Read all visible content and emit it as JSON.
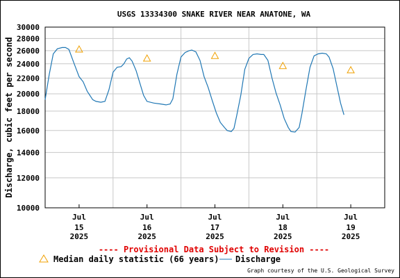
{
  "chart_data": {
    "type": "line",
    "title": "USGS 13334300 SNAKE RIVER NEAR ANATONE, WA",
    "ylabel": "Discharge, cubic feet per second",
    "xlabel": "",
    "y_scale": "log",
    "ylim": [
      10000,
      30000
    ],
    "y_ticks": [
      10000,
      12000,
      14000,
      16000,
      18000,
      20000,
      22000,
      24000,
      26000,
      28000,
      30000
    ],
    "y_tick_labels": [
      "10000",
      "12000",
      "14000",
      "16000",
      "18000",
      "20000",
      "22000",
      "24000",
      "26000",
      "28000",
      "30000"
    ],
    "x_unit": "day of July 2025",
    "xlim": [
      14.5,
      19.5
    ],
    "x_ticks": [
      {
        "x": 15,
        "label_month": "Jul",
        "label_day": "15",
        "label_year": "2025"
      },
      {
        "x": 16,
        "label_month": "Jul",
        "label_day": "16",
        "label_year": "2025"
      },
      {
        "x": 17,
        "label_month": "Jul",
        "label_day": "17",
        "label_year": "2025"
      },
      {
        "x": 18,
        "label_month": "Jul",
        "label_day": "18",
        "label_year": "2025"
      },
      {
        "x": 19,
        "label_month": "Jul",
        "label_day": "19",
        "label_year": "2025"
      }
    ],
    "grid": true,
    "series": [
      {
        "name": "Discharge",
        "color": "#1f77b4",
        "points": [
          [
            14.5,
            19300
          ],
          [
            14.56,
            22500
          ],
          [
            14.62,
            25500
          ],
          [
            14.68,
            26300
          ],
          [
            14.75,
            26500
          ],
          [
            14.8,
            26500
          ],
          [
            14.85,
            26200
          ],
          [
            14.92,
            24200
          ],
          [
            15.0,
            22200
          ],
          [
            15.06,
            21500
          ],
          [
            15.12,
            20300
          ],
          [
            15.2,
            19300
          ],
          [
            15.25,
            19100
          ],
          [
            15.32,
            19000
          ],
          [
            15.38,
            19100
          ],
          [
            15.44,
            20500
          ],
          [
            15.5,
            22800
          ],
          [
            15.56,
            23500
          ],
          [
            15.62,
            23600
          ],
          [
            15.66,
            24000
          ],
          [
            15.7,
            24700
          ],
          [
            15.74,
            24900
          ],
          [
            15.78,
            24400
          ],
          [
            15.84,
            23000
          ],
          [
            15.9,
            21200
          ],
          [
            15.95,
            19800
          ],
          [
            16.0,
            19100
          ],
          [
            16.1,
            18900
          ],
          [
            16.2,
            18800
          ],
          [
            16.28,
            18700
          ],
          [
            16.34,
            18800
          ],
          [
            16.38,
            19400
          ],
          [
            16.44,
            22500
          ],
          [
            16.5,
            25000
          ],
          [
            16.56,
            25700
          ],
          [
            16.62,
            26000
          ],
          [
            16.66,
            26100
          ],
          [
            16.72,
            25800
          ],
          [
            16.78,
            24500
          ],
          [
            16.84,
            22200
          ],
          [
            16.9,
            20800
          ],
          [
            16.96,
            19200
          ],
          [
            17.02,
            17800
          ],
          [
            17.08,
            16800
          ],
          [
            17.14,
            16300
          ],
          [
            17.18,
            16000
          ],
          [
            17.24,
            15900
          ],
          [
            17.28,
            16200
          ],
          [
            17.32,
            17500
          ],
          [
            17.38,
            19800
          ],
          [
            17.44,
            23200
          ],
          [
            17.5,
            24800
          ],
          [
            17.56,
            25400
          ],
          [
            17.62,
            25500
          ],
          [
            17.68,
            25400
          ],
          [
            17.72,
            25400
          ],
          [
            17.78,
            24500
          ],
          [
            17.84,
            22000
          ],
          [
            17.9,
            20100
          ],
          [
            17.96,
            18700
          ],
          [
            18.02,
            17200
          ],
          [
            18.08,
            16300
          ],
          [
            18.12,
            15900
          ],
          [
            18.18,
            15850
          ],
          [
            18.24,
            16300
          ],
          [
            18.28,
            17700
          ],
          [
            18.34,
            20500
          ],
          [
            18.4,
            23500
          ],
          [
            18.46,
            25200
          ],
          [
            18.52,
            25500
          ],
          [
            18.58,
            25600
          ],
          [
            18.64,
            25500
          ],
          [
            18.68,
            25000
          ],
          [
            18.74,
            23300
          ],
          [
            18.8,
            20800
          ],
          [
            18.85,
            18900
          ],
          [
            18.9,
            17600
          ]
        ]
      }
    ],
    "median_statistic": {
      "name": "Median daily statistic (66 years)",
      "color": "#f0a000",
      "points": [
        [
          15.0,
          26200
        ],
        [
          16.0,
          24800
        ],
        [
          17.0,
          25200
        ],
        [
          18.0,
          23700
        ],
        [
          19.0,
          23100
        ]
      ]
    },
    "provisional_note": "---- Provisional Data Subject to Revision ----",
    "legend": {
      "placement": "bottom",
      "median_label": "Median daily statistic (66 years)",
      "discharge_label": "Discharge"
    },
    "credit": "Graph courtesy of the U.S. Geological Survey"
  }
}
